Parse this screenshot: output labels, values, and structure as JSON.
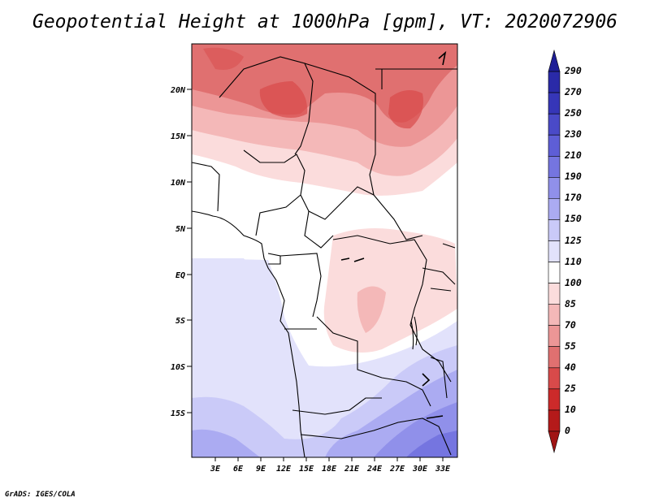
{
  "title": "Geopotential Height at 1000hPa [gpm], VT: 2020072906",
  "footer": "GrADS: IGES/COLA",
  "map": {
    "lat_labels": [
      "20N",
      "15N",
      "10N",
      "5N",
      "EQ",
      "5S",
      "10S",
      "15S"
    ],
    "lon_labels": [
      "3E",
      "6E",
      "9E",
      "12E",
      "15E",
      "18E",
      "21E",
      "24E",
      "27E",
      "30E",
      "33E"
    ]
  },
  "colorbar": {
    "labels": [
      "290",
      "270",
      "250",
      "230",
      "210",
      "190",
      "170",
      "150",
      "125",
      "110",
      "100",
      "85",
      "70",
      "55",
      "40",
      "25",
      "10",
      "0"
    ],
    "colors": [
      "#1e1e96",
      "#2a2aa8",
      "#3636b8",
      "#4a4ac8",
      "#5e5ed6",
      "#7575e0",
      "#9090ea",
      "#ababf2",
      "#cacaf8",
      "#e2e2fb",
      "#ffffff",
      "#fbdcdc",
      "#f4b8b8",
      "#ec9696",
      "#e07070",
      "#d84a4a",
      "#cc2a2a",
      "#b41a1a",
      "#a01414"
    ]
  }
}
